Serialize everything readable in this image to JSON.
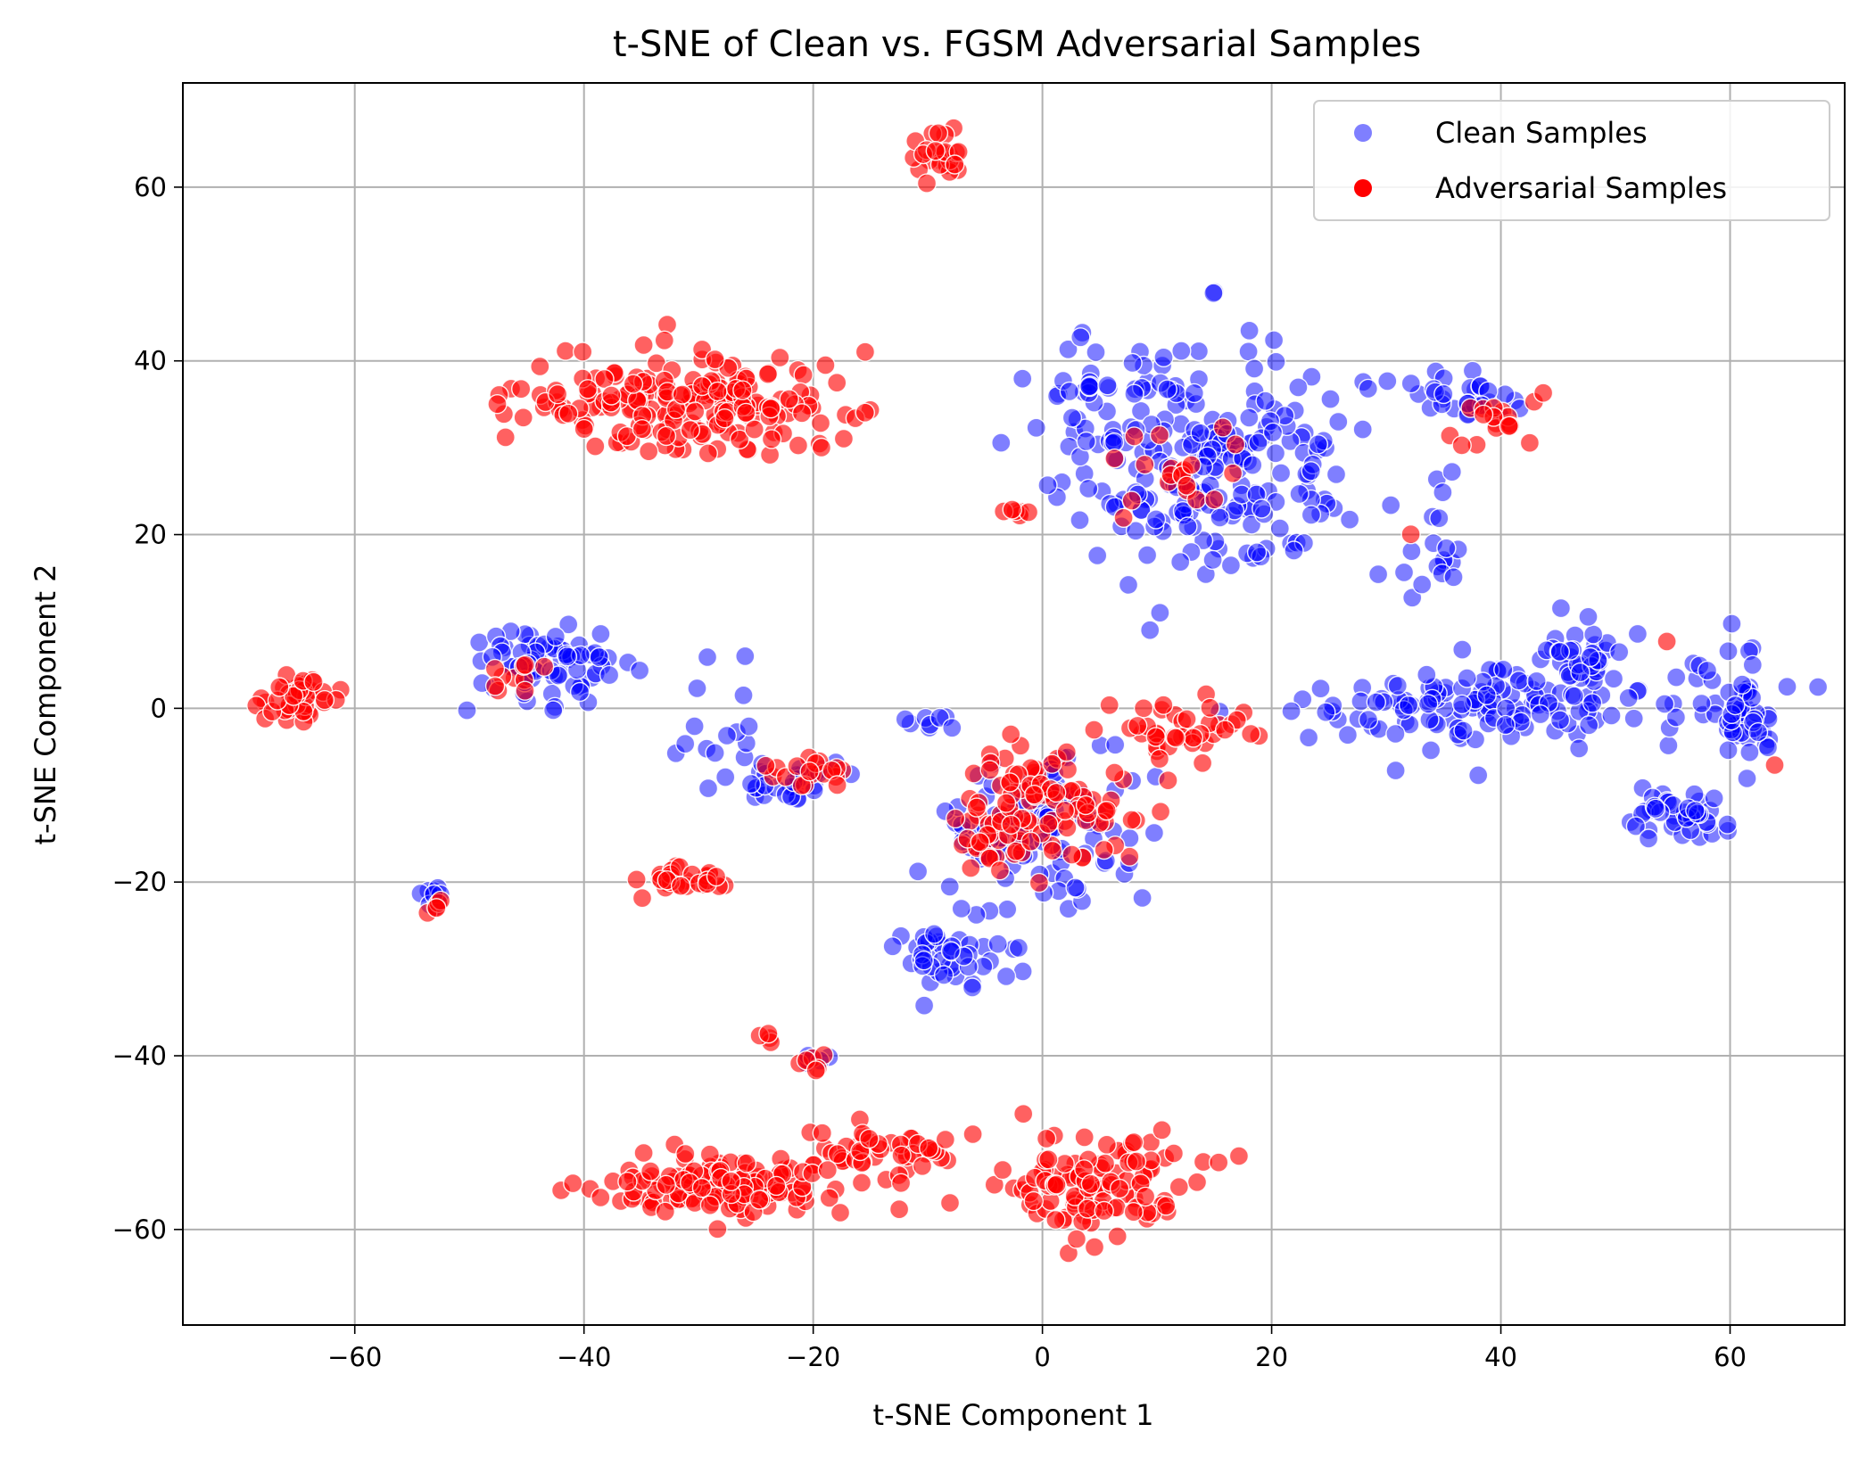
{
  "chart_data": {
    "type": "scatter",
    "title": "t-SNE of Clean vs. FGSM Adversarial Samples",
    "xlabel": "t-SNE Component 1",
    "ylabel": "t-SNE Component 2",
    "xlim": [
      -75,
      70
    ],
    "ylim": [
      -71,
      72
    ],
    "xticks": [
      -60,
      -40,
      -20,
      0,
      20,
      40,
      60
    ],
    "yticks": [
      -60,
      -40,
      -20,
      0,
      20,
      40,
      60
    ],
    "tick_labels_x": [
      "−60",
      "−40",
      "−20",
      "0",
      "20",
      "40",
      "60"
    ],
    "tick_labels_y": [
      "−60",
      "−40",
      "−20",
      "0",
      "20",
      "40",
      "60"
    ],
    "grid": true,
    "legend": {
      "position": "top-right"
    },
    "series": [
      {
        "name": "Clean Samples",
        "color": "#0000ff",
        "clusters": [
          {
            "cx": 15,
            "cy": 29,
            "sx": 7,
            "sy": 7,
            "n": 240
          },
          {
            "cx": 40,
            "cy": 0,
            "sx": 8,
            "sy": 2.5,
            "n": 140
          },
          {
            "cx": 47,
            "cy": 7,
            "sx": 2,
            "sy": 2.5,
            "n": 30
          },
          {
            "cx": 61,
            "cy": 0,
            "sx": 1.8,
            "sy": 3.5,
            "n": 50
          },
          {
            "cx": 55,
            "cy": -12,
            "sx": 2.5,
            "sy": 1.5,
            "n": 40
          },
          {
            "cx": -43,
            "cy": 5,
            "sx": 3,
            "sy": 2.5,
            "n": 70
          },
          {
            "cx": -22,
            "cy": -8,
            "sx": 2.5,
            "sy": 1.5,
            "n": 30
          },
          {
            "cx": -29,
            "cy": -3,
            "sx": 2,
            "sy": 3.5,
            "n": 15
          },
          {
            "cx": 0,
            "cy": -14,
            "sx": 4.5,
            "sy": 4,
            "n": 110
          },
          {
            "cx": -8,
            "cy": -28,
            "sx": 3,
            "sy": 2.2,
            "n": 45
          },
          {
            "cx": 37,
            "cy": 36,
            "sx": 2.5,
            "sy": 1.5,
            "n": 30
          },
          {
            "cx": 35,
            "cy": 18,
            "sx": 0.8,
            "sy": 2,
            "n": 12
          },
          {
            "cx": -53,
            "cy": -21.5,
            "sx": 0.8,
            "sy": 0.8,
            "n": 10
          },
          {
            "cx": -10,
            "cy": -1.5,
            "sx": 1.2,
            "sy": 0.6,
            "n": 8
          },
          {
            "cx": 3,
            "cy": 37,
            "sx": 2,
            "sy": 0.6,
            "n": 12
          },
          {
            "cx": -20,
            "cy": -40,
            "sx": 0.8,
            "sy": 0.6,
            "n": 5
          }
        ]
      },
      {
        "name": "Adversarial Samples",
        "color": "#ff0000",
        "clusters": [
          {
            "cx": -31,
            "cy": 35,
            "sx": 7,
            "sy": 2.8,
            "n": 200
          },
          {
            "cx": -27,
            "cy": -55,
            "sx": 5,
            "sy": 1.8,
            "n": 130
          },
          {
            "cx": -15,
            "cy": -51,
            "sx": 3.5,
            "sy": 1.5,
            "n": 50
          },
          {
            "cx": 5,
            "cy": -55,
            "sx": 4,
            "sy": 3.2,
            "n": 110
          },
          {
            "cx": -65,
            "cy": 1,
            "sx": 1.5,
            "sy": 1.6,
            "n": 40
          },
          {
            "cx": -31,
            "cy": -19.5,
            "sx": 1.5,
            "sy": 0.8,
            "n": 30
          },
          {
            "cx": -9,
            "cy": 63.5,
            "sx": 1.3,
            "sy": 1.2,
            "n": 25
          },
          {
            "cx": 0,
            "cy": -12,
            "sx": 4,
            "sy": 3.5,
            "n": 110
          },
          {
            "cx": 12,
            "cy": -2.5,
            "sx": 3.2,
            "sy": 1.5,
            "n": 40
          },
          {
            "cx": -20,
            "cy": -7,
            "sx": 2.2,
            "sy": 1.2,
            "n": 18
          },
          {
            "cx": 40,
            "cy": 33,
            "sx": 2,
            "sy": 1.5,
            "n": 18
          },
          {
            "cx": -2.5,
            "cy": 23,
            "sx": 0.6,
            "sy": 0.6,
            "n": 6
          },
          {
            "cx": -20,
            "cy": -41,
            "sx": 0.8,
            "sy": 0.8,
            "n": 6
          },
          {
            "cx": -24,
            "cy": -38,
            "sx": 0.5,
            "sy": 0.3,
            "n": 4
          },
          {
            "cx": -53,
            "cy": -22.5,
            "sx": 0.5,
            "sy": 0.4,
            "n": 5
          },
          {
            "cx": 12,
            "cy": 27,
            "sx": 2.5,
            "sy": 3.5,
            "n": 20
          },
          {
            "cx": -46,
            "cy": 4,
            "sx": 1.5,
            "sy": 1.5,
            "n": 10
          },
          {
            "cx": 54.5,
            "cy": 7.8,
            "sx": 0.1,
            "sy": 0.1,
            "n": 1
          },
          {
            "cx": 64,
            "cy": -6.5,
            "sx": 0.1,
            "sy": 0.1,
            "n": 1
          },
          {
            "cx": 32,
            "cy": 20,
            "sx": 0.1,
            "sy": 0.1,
            "n": 1
          }
        ]
      }
    ]
  }
}
